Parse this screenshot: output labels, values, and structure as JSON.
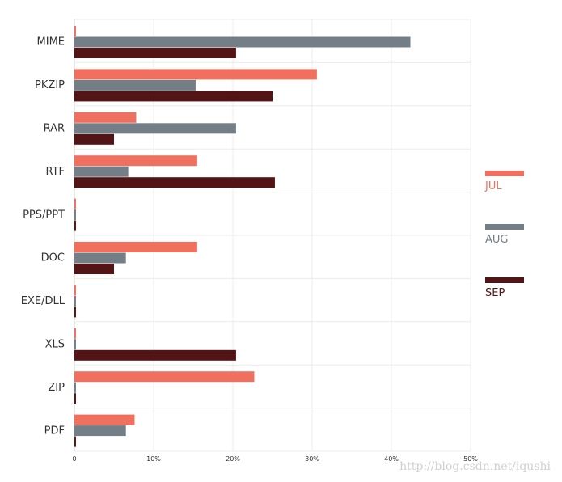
{
  "chart_data": {
    "type": "bar",
    "orientation": "horizontal",
    "categories": [
      "MIME",
      "PKZIP",
      "RAR",
      "RTF",
      "PPS/PPT",
      "DOC",
      "EXE/DLL",
      "XLS",
      "ZIP",
      "PDF"
    ],
    "series": [
      {
        "name": "JUL",
        "color": "#f07060",
        "values": [
          0.2,
          30.6,
          7.8,
          15.5,
          0.2,
          15.5,
          0.2,
          0.2,
          22.7,
          7.6
        ]
      },
      {
        "name": "AUG",
        "color": "#747e86",
        "values": [
          42.4,
          15.3,
          20.4,
          6.8,
          0.2,
          6.5,
          0.2,
          0.2,
          0.2,
          6.5
        ]
      },
      {
        "name": "SEP",
        "color": "#521414",
        "values": [
          20.4,
          25.0,
          5.0,
          25.3,
          0.2,
          5.0,
          0.2,
          20.4,
          0.2,
          0.2
        ]
      }
    ],
    "xlim": [
      0,
      50
    ],
    "xticks": [
      0,
      10,
      20,
      30,
      40,
      50
    ],
    "xtick_labels": [
      "0",
      "10%",
      "20%",
      "30%",
      "40%",
      "50%"
    ],
    "grid": true,
    "legend": "right",
    "title": "",
    "xlabel": "",
    "ylabel": ""
  },
  "watermark": "http://blog.csdn.net/iqushi"
}
